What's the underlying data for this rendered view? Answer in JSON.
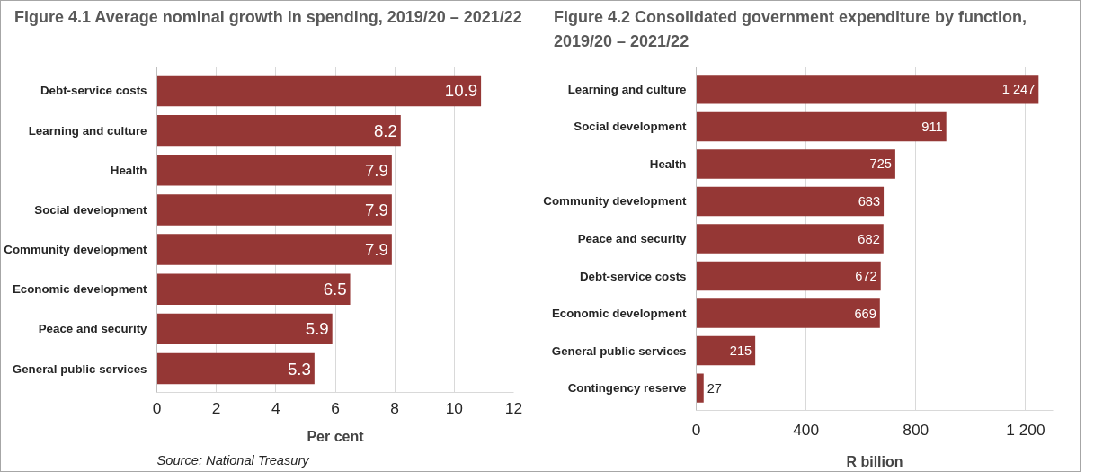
{
  "chart_data": [
    {
      "type": "bar",
      "orientation": "horizontal",
      "title": "Figure 4.1 Average nominal growth in spending, 2019/20 – 2021/22",
      "xlabel": "Per cent",
      "categories": [
        "Debt-service costs",
        "Learning and culture",
        "Health",
        "Social development",
        "Community development",
        "Economic development",
        "Peace and security",
        "General public services"
      ],
      "values": [
        10.9,
        8.2,
        7.9,
        7.9,
        7.9,
        6.5,
        5.9,
        5.3
      ],
      "color": "#953735",
      "xlim": [
        0,
        12
      ],
      "xticks": [
        0,
        2,
        4,
        6,
        8,
        10,
        12
      ],
      "grid": "x",
      "data_labels": true,
      "annotations": [
        "Source: National Treasury"
      ]
    },
    {
      "type": "bar",
      "orientation": "horizontal",
      "title": "Figure 4.2 Consolidated government expenditure by function, 2019/20 – 2021/22",
      "xlabel": "R billion",
      "categories": [
        "Learning and culture",
        "Social development",
        "Health",
        "Community development",
        "Peace and security",
        "Debt-service costs",
        "Economic development",
        "General public services",
        "Contingency reserve"
      ],
      "values": [
        1247,
        911,
        725,
        683,
        682,
        672,
        669,
        215,
        27
      ],
      "color": "#953735",
      "value_labels": [
        "1 247",
        "911",
        "725",
        "683",
        "682",
        "672",
        "669",
        "215",
        "27"
      ],
      "xlim": [
        0,
        1300
      ],
      "xticks": [
        0,
        400,
        800,
        {
          "value": 1200,
          "label": "1 200"
        }
      ],
      "grid": "x"
    }
  ]
}
